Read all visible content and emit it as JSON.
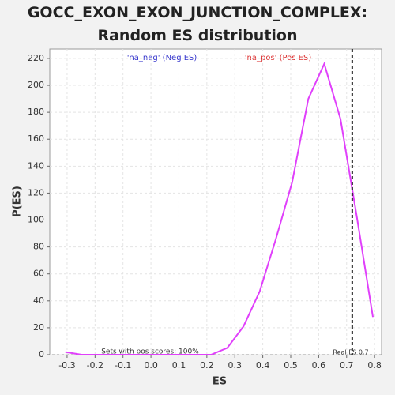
{
  "chart_data": {
    "type": "line",
    "title": "GOCC_EXON_EXON_JUNCTION_COMPLEX: Random ES distribution",
    "x_label": "ES",
    "y_label": "P(ES)",
    "x": [
      -0.306,
      -0.248,
      -0.19,
      -0.132,
      -0.074,
      -0.017,
      0.041,
      0.099,
      0.157,
      0.215,
      0.273,
      0.331,
      0.389,
      0.447,
      0.505,
      0.563,
      0.62,
      0.678,
      0.736,
      0.794
    ],
    "series": [
      {
        "name": "P(ES)",
        "color": "#e040fb",
        "values": [
          2,
          0,
          0,
          0,
          0,
          0,
          0,
          0,
          0,
          0,
          5,
          21,
          47,
          86,
          128,
          190,
          216,
          175,
          103,
          28
        ]
      }
    ],
    "xlim": [
      -0.362,
      0.825
    ],
    "ylim": [
      0,
      227
    ],
    "xticks": [
      -0.3,
      -0.2,
      -0.1,
      {
        "value": 0,
        "label": "0.0"
      },
      0.1,
      0.2,
      0.3,
      0.4,
      0.5,
      0.6,
      0.7,
      0.8
    ],
    "yticks": [
      0,
      20,
      40,
      60,
      80,
      100,
      120,
      140,
      160,
      180,
      200,
      220
    ],
    "grid": true,
    "real_es": 0.72,
    "annotations": {
      "neg": "'na_neg' (Neg ES)",
      "pos": "'na_pos' (Pos ES)",
      "sets": "Sets with pos scores: 100%",
      "real": "Real ES 0.7"
    }
  }
}
